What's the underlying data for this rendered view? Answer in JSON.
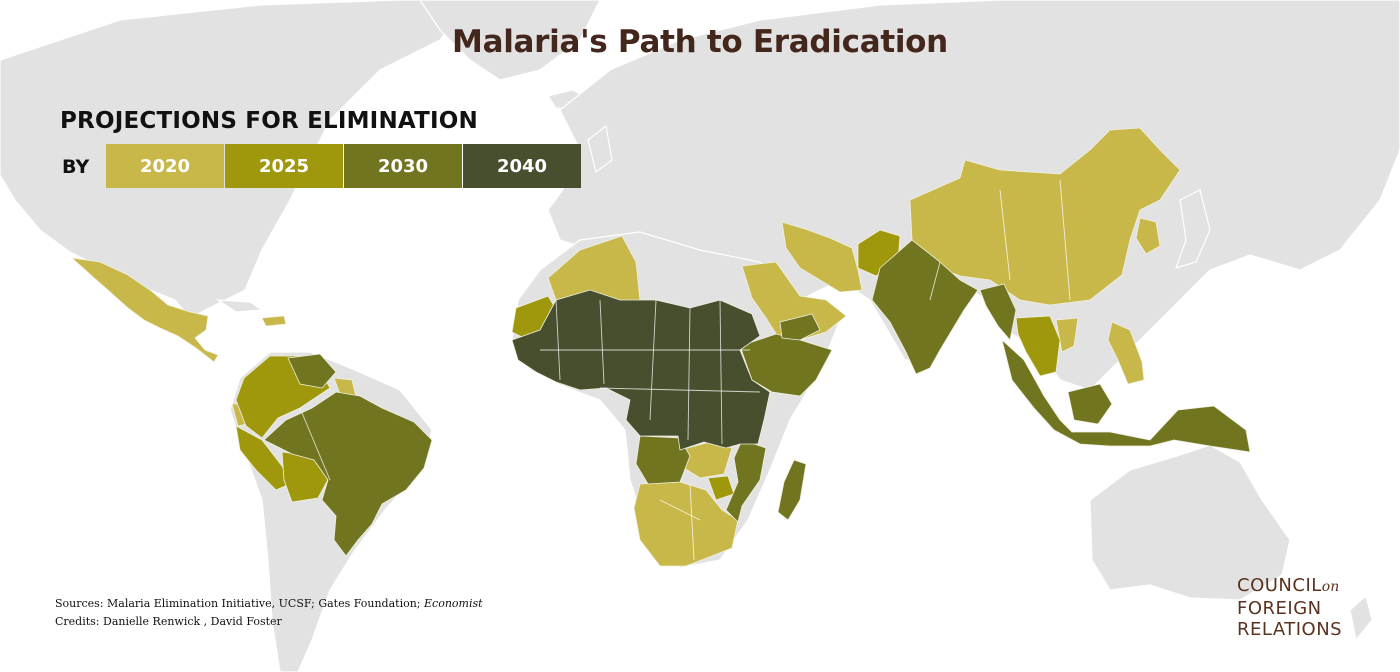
{
  "title": "Malaria's Path to Eradication",
  "legend": {
    "heading": "PROJECTIONS FOR ELIMINATION",
    "by_label": "BY",
    "items": [
      {
        "label": "2020",
        "color": "#c8b84a"
      },
      {
        "label": "2025",
        "color": "#a0980c"
      },
      {
        "label": "2030",
        "color": "#717520"
      },
      {
        "label": "2040",
        "color": "#474f2e"
      }
    ]
  },
  "sources": {
    "prefix": "Sources: Malaria Elimination Initiative, UCSF; Gates Foundation; ",
    "italic": "Economist",
    "credits": "Credits: Danielle Renwick , David Foster"
  },
  "logo": {
    "line1": "COUNCIL",
    "on": "on",
    "line2": "FOREIGN",
    "line3": "RELATIONS"
  },
  "colors": {
    "background": "#ffffff",
    "land": "#e2e2e2",
    "title": "#43261c",
    "logo": "#5a3320"
  }
}
